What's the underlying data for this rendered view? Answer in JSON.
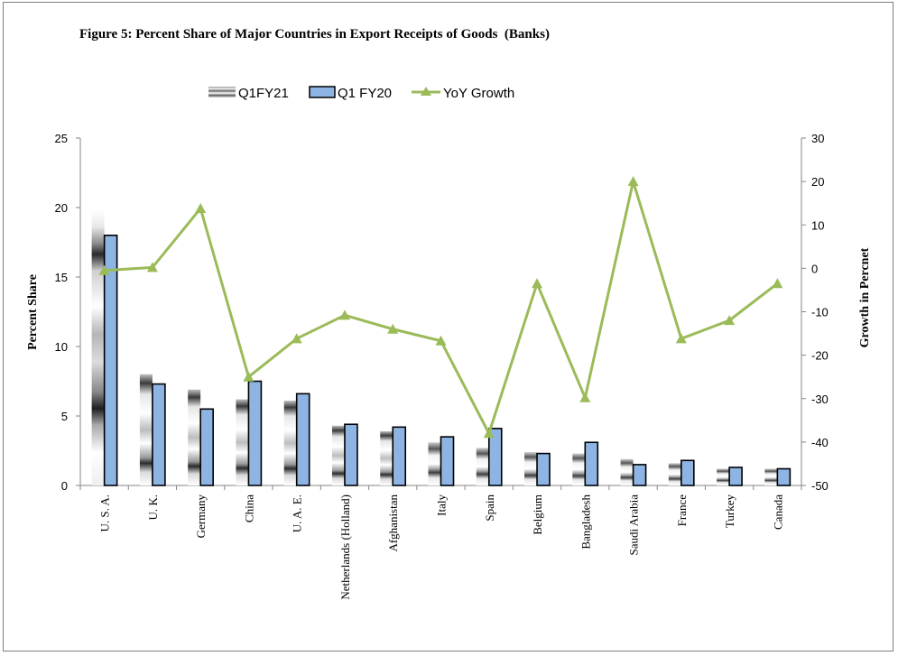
{
  "chart_data": {
    "type": "bar",
    "title": "Figure 5: Percent Share of Major Countries in Export Receipts of Goods  (Banks)",
    "ylabel": "Percent Share",
    "y2label": "Growth in Percnet",
    "ylim": [
      0,
      25
    ],
    "y2lim": [
      -50,
      30
    ],
    "yticks": [
      0,
      5,
      10,
      15,
      20,
      25
    ],
    "y2ticks": [
      -50,
      -40,
      -30,
      -20,
      -10,
      0,
      10,
      20,
      30
    ],
    "grid": false,
    "legend_position": "top",
    "categories": [
      "U. S. A.",
      "U. K.",
      "Germany",
      "China",
      "U. A. E.",
      "Netherlands (Holland)",
      "Afghanistan",
      "Italy",
      "Spain",
      "Belgium",
      "Bangladesh",
      "Saudi Arabia",
      "France",
      "Turkey",
      "Canada"
    ],
    "series": [
      {
        "name": "Q1FY21",
        "type": "bar",
        "axis": "left",
        "values": [
          19.8,
          8.0,
          6.9,
          6.2,
          6.1,
          4.3,
          3.9,
          3.1,
          2.7,
          2.4,
          2.3,
          1.9,
          1.6,
          1.2,
          1.2
        ]
      },
      {
        "name": "Q1 FY20",
        "type": "bar",
        "axis": "left",
        "values": [
          18.0,
          7.3,
          5.5,
          7.5,
          6.6,
          4.4,
          4.2,
          3.5,
          4.1,
          2.3,
          3.1,
          1.5,
          1.8,
          1.3,
          1.2
        ]
      },
      {
        "name": "YoY Growth",
        "type": "line",
        "axis": "right",
        "values": [
          -0.5,
          0.2,
          13.8,
          -25.0,
          -16.2,
          -10.8,
          -14.0,
          -16.7,
          -38.0,
          -3.5,
          -29.8,
          20.0,
          -16.2,
          -12.0,
          -3.5
        ]
      }
    ],
    "colors": {
      "q1fy20_fill": "#8eb4e3",
      "q1fy20_stroke": "#000000",
      "growth_line": "#9bbb59",
      "axis": "#868686"
    }
  }
}
